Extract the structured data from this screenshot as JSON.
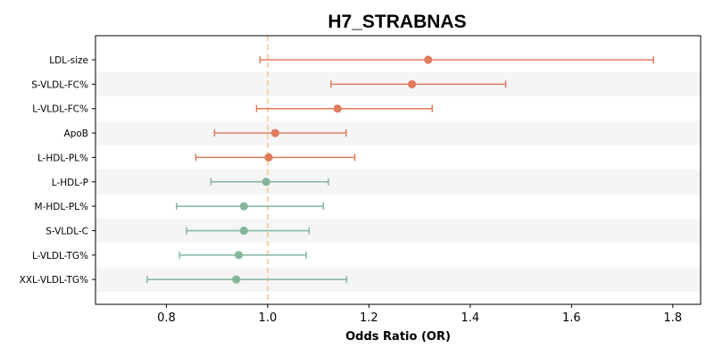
{
  "chart_data": {
    "type": "forest",
    "title": "H7_STRABNAS",
    "xlabel": "Odds Ratio (OR)",
    "xlim": [
      0.66,
      1.855
    ],
    "xticks": [
      0.8,
      1.0,
      1.2,
      1.4,
      1.6,
      1.8
    ],
    "xtick_labels": [
      "0.8",
      "1.0",
      "1.2",
      "1.4",
      "1.6",
      "1.8"
    ],
    "reference_line": 1.0,
    "colors": {
      "positive": "#e07b5c",
      "negative": "#84b59b",
      "reference_line": "#f5c48a",
      "band": "#f5f5f5"
    },
    "rows": [
      {
        "label": "LDL-size",
        "or": 1.317,
        "lo": 0.985,
        "hi": 1.762,
        "group": "positive"
      },
      {
        "label": "S-VLDL-FC%",
        "or": 1.285,
        "lo": 1.125,
        "hi": 1.47,
        "group": "positive"
      },
      {
        "label": "L-VLDL-FC%",
        "or": 1.138,
        "lo": 0.978,
        "hi": 1.325,
        "group": "positive"
      },
      {
        "label": "ApoB",
        "or": 1.015,
        "lo": 0.895,
        "hi": 1.155,
        "group": "positive"
      },
      {
        "label": "L-HDL-PL%",
        "or": 1.002,
        "lo": 0.858,
        "hi": 1.172,
        "group": "positive"
      },
      {
        "label": "L-HDL-P",
        "or": 0.997,
        "lo": 0.888,
        "hi": 1.12,
        "group": "negative"
      },
      {
        "label": "M-HDL-PL%",
        "or": 0.953,
        "lo": 0.82,
        "hi": 1.11,
        "group": "negative"
      },
      {
        "label": "S-VLDL-C",
        "or": 0.953,
        "lo": 0.84,
        "hi": 1.082,
        "group": "negative"
      },
      {
        "label": "L-VLDL-TG%",
        "or": 0.943,
        "lo": 0.826,
        "hi": 1.076,
        "group": "negative"
      },
      {
        "label": "XXL-VLDL-TG%",
        "or": 0.938,
        "lo": 0.762,
        "hi": 1.156,
        "group": "negative"
      }
    ]
  }
}
